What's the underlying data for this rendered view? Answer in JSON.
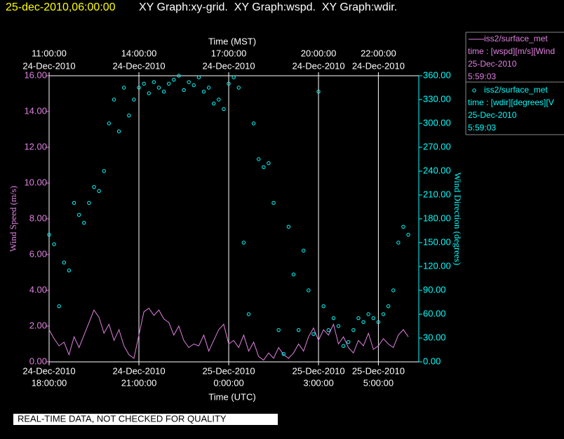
{
  "chart_data": {
    "type": "line-scatter",
    "title": "25-dec-2010,06:00:00",
    "subtitle": "XY Graph:xy-grid.  XY Graph:wspd.  XY Graph:wdir.",
    "note": "REAL-TIME DATA, NOT CHECKED FOR QUALITY",
    "xlabel": "Time (UTC)",
    "x2label": "Time (MST)",
    "ylabel": "Wind Speed (m/s)",
    "y2label": "Wind Direction (degrees)",
    "xlim": [
      "2010-12-24T18:00Z",
      "2010-12-25T06:21Z"
    ],
    "xticks": [
      {
        "value": "2010-12-24T18:00Z",
        "label": [
          "24-Dec-2010",
          "18:00:00"
        ]
      },
      {
        "value": "2010-12-24T21:00Z",
        "label": [
          "24-Dec-2010",
          "21:00:00"
        ]
      },
      {
        "value": "2010-12-25T00:00Z",
        "label": [
          "25-Dec-2010",
          "0:00:00"
        ]
      },
      {
        "value": "2010-12-25T03:00Z",
        "label": [
          "25-Dec-2010",
          "3:00:00"
        ]
      },
      {
        "value": "2010-12-25T05:00Z",
        "label": [
          "25-Dec-2010",
          "5:00:00"
        ]
      }
    ],
    "x2ticks": [
      {
        "value": "2010-12-24T11:00-07:00",
        "label": [
          "11:00:00",
          "24-Dec-2010"
        ]
      },
      {
        "value": "2010-12-24T14:00-07:00",
        "label": [
          "14:00:00",
          "24-Dec-2010"
        ]
      },
      {
        "value": "2010-12-24T17:00-07:00",
        "label": [
          "17:00:00",
          "24-Dec-2010"
        ]
      },
      {
        "value": "2010-12-24T20:00-07:00",
        "label": [
          "20:00:00",
          "24-Dec-2010"
        ]
      },
      {
        "value": "2010-12-24T22:00-07:00",
        "label": [
          "22:00:00",
          "24-Dec-2010"
        ]
      }
    ],
    "ylim": [
      0,
      16
    ],
    "yticks": [
      {
        "value": 0,
        "label": "0.00"
      },
      {
        "value": 2,
        "label": "2.00"
      },
      {
        "value": 4,
        "label": "4.00"
      },
      {
        "value": 6,
        "label": "6.00"
      },
      {
        "value": 8,
        "label": "8.00"
      },
      {
        "value": 10,
        "label": "10.00"
      },
      {
        "value": 12,
        "label": "12.00"
      },
      {
        "value": 14,
        "label": "14.00"
      },
      {
        "value": 16,
        "label": "16.00"
      }
    ],
    "y2lim": [
      0,
      360
    ],
    "y2ticks": [
      {
        "value": 0,
        "label": "0.00"
      },
      {
        "value": 30,
        "label": "30.00"
      },
      {
        "value": 60,
        "label": "60.00"
      },
      {
        "value": 90,
        "label": "90.00"
      },
      {
        "value": 120,
        "label": "120.00"
      },
      {
        "value": 150,
        "label": "150.00"
      },
      {
        "value": 180,
        "label": "180.00"
      },
      {
        "value": 210,
        "label": "210.00"
      },
      {
        "value": 240,
        "label": "240.00"
      },
      {
        "value": 270,
        "label": "270.00"
      },
      {
        "value": 300,
        "label": "300.00"
      },
      {
        "value": 330,
        "label": "330.00"
      },
      {
        "value": 360,
        "label": "360.00"
      }
    ],
    "grid": true,
    "x": [
      "2010-12-24T18:00Z",
      "2010-12-24T18:10Z",
      "2010-12-24T18:20Z",
      "2010-12-24T18:30Z",
      "2010-12-24T18:40Z",
      "2010-12-24T18:50Z",
      "2010-12-24T19:00Z",
      "2010-12-24T19:10Z",
      "2010-12-24T19:20Z",
      "2010-12-24T19:30Z",
      "2010-12-24T19:40Z",
      "2010-12-24T19:50Z",
      "2010-12-24T20:00Z",
      "2010-12-24T20:10Z",
      "2010-12-24T20:20Z",
      "2010-12-24T20:30Z",
      "2010-12-24T20:40Z",
      "2010-12-24T20:50Z",
      "2010-12-24T21:00Z",
      "2010-12-24T21:10Z",
      "2010-12-24T21:20Z",
      "2010-12-24T21:30Z",
      "2010-12-24T21:40Z",
      "2010-12-24T21:50Z",
      "2010-12-24T22:00Z",
      "2010-12-24T22:10Z",
      "2010-12-24T22:20Z",
      "2010-12-24T22:30Z",
      "2010-12-24T22:40Z",
      "2010-12-24T22:50Z",
      "2010-12-24T23:00Z",
      "2010-12-24T23:10Z",
      "2010-12-24T23:20Z",
      "2010-12-24T23:30Z",
      "2010-12-24T23:40Z",
      "2010-12-24T23:50Z",
      "2010-12-25T00:00Z",
      "2010-12-25T00:10Z",
      "2010-12-25T00:20Z",
      "2010-12-25T00:30Z",
      "2010-12-25T00:40Z",
      "2010-12-25T00:50Z",
      "2010-12-25T01:00Z",
      "2010-12-25T01:10Z",
      "2010-12-25T01:20Z",
      "2010-12-25T01:30Z",
      "2010-12-25T01:40Z",
      "2010-12-25T01:50Z",
      "2010-12-25T02:00Z",
      "2010-12-25T02:10Z",
      "2010-12-25T02:20Z",
      "2010-12-25T02:30Z",
      "2010-12-25T02:40Z",
      "2010-12-25T02:50Z",
      "2010-12-25T03:00Z",
      "2010-12-25T03:10Z",
      "2010-12-25T03:20Z",
      "2010-12-25T03:30Z",
      "2010-12-25T03:40Z",
      "2010-12-25T03:50Z",
      "2010-12-25T04:00Z",
      "2010-12-25T04:10Z",
      "2010-12-25T04:20Z",
      "2010-12-25T04:30Z",
      "2010-12-25T04:40Z",
      "2010-12-25T04:50Z",
      "2010-12-25T05:00Z",
      "2010-12-25T05:10Z",
      "2010-12-25T05:20Z",
      "2010-12-25T05:30Z",
      "2010-12-25T05:40Z",
      "2010-12-25T05:50Z",
      "2010-12-25T06:00Z"
    ],
    "series": [
      {
        "name": "iss2/surface_met",
        "kind": "line",
        "color": "#e080e0",
        "legend_lines": [
          "time : [wspd][m/s][Wind",
          "25-Dec-2010",
          "5:59:03"
        ],
        "values": [
          1.8,
          1.3,
          0.9,
          1.1,
          0.4,
          1.4,
          0.8,
          1.5,
          2.2,
          2.9,
          2.5,
          1.6,
          2.1,
          1.2,
          1.8,
          0.9,
          0.4,
          0.2,
          1.5,
          2.8,
          3.0,
          2.6,
          2.9,
          2.4,
          2.2,
          1.5,
          2.0,
          1.2,
          0.8,
          1.0,
          0.9,
          1.5,
          0.6,
          1.2,
          1.8,
          2.1,
          1.0,
          1.2,
          0.8,
          1.5,
          0.6,
          1.1,
          0.3,
          0.1,
          0.5,
          0.2,
          0.8,
          0.4,
          0.2,
          0.5,
          1.0,
          0.6,
          1.4,
          1.9,
          1.2,
          1.8,
          1.5,
          2.1,
          1.0,
          1.4,
          0.8,
          0.5,
          1.2,
          0.9,
          1.6,
          0.7,
          0.9,
          1.3,
          1.0,
          0.8,
          1.5,
          1.8,
          1.4
        ]
      },
      {
        "name": "iss2/surface_met",
        "kind": "scatter",
        "axis": "y2",
        "color": "#00ffff",
        "legend_lines": [
          "time : [wdir][degrees][V",
          "25-Dec-2010",
          "5:59:03"
        ],
        "values": [
          160,
          148,
          70,
          125,
          115,
          200,
          185,
          175,
          200,
          220,
          215,
          240,
          300,
          330,
          290,
          345,
          310,
          330,
          345,
          350,
          338,
          352,
          345,
          340,
          350,
          355,
          360,
          342,
          352,
          348,
          358,
          340,
          345,
          325,
          330,
          318,
          350,
          358,
          345,
          150,
          60,
          300,
          255,
          245,
          250,
          200,
          40,
          10,
          170,
          110,
          40,
          140,
          90,
          35,
          340,
          70,
          40,
          55,
          45,
          20,
          25,
          40,
          55,
          50,
          60,
          55,
          50,
          60,
          70,
          90,
          150,
          170,
          160
        ]
      }
    ]
  }
}
